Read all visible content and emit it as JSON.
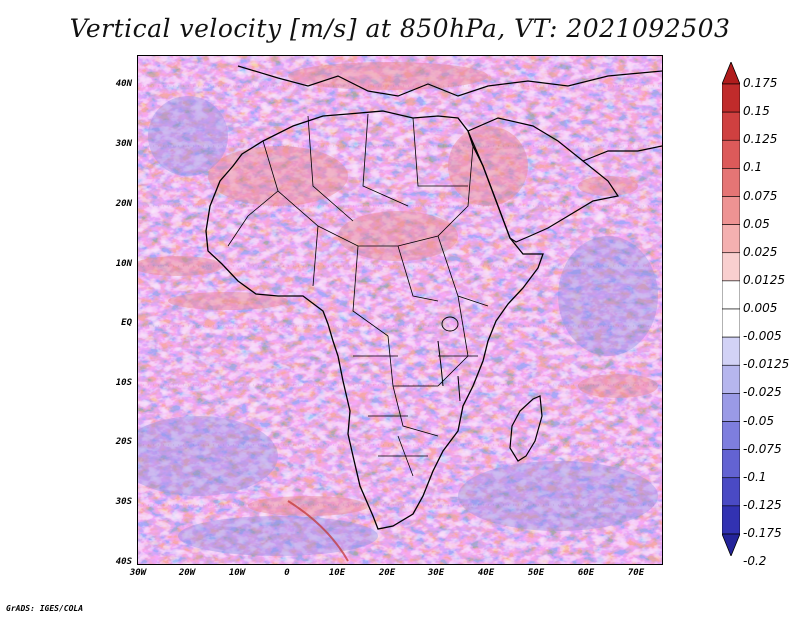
{
  "title": "Vertical velocity [m/s] at 850hPa, VT: 2021092503",
  "footer": "GrADS: IGES/COLA",
  "lat_labels": [
    "40N",
    "30N",
    "20N",
    "10N",
    "EQ",
    "10S",
    "20S",
    "30S",
    "40S"
  ],
  "lon_labels": [
    "30W",
    "20W",
    "10W",
    "0",
    "10E",
    "20E",
    "30E",
    "40E",
    "50E",
    "60E",
    "70E"
  ],
  "colorbar": {
    "labels": [
      "0.175",
      "0.15",
      "0.125",
      "0.1",
      "0.075",
      "0.05",
      "0.025",
      "0.0125",
      "0.005",
      "-0.005",
      "-0.0125",
      "-0.025",
      "-0.05",
      "-0.075",
      "-0.1",
      "-0.125",
      "-0.175",
      "-0.2"
    ],
    "colors": [
      "#b01c1c",
      "#c02b2b",
      "#cf4040",
      "#dc5a5a",
      "#e57575",
      "#ee9393",
      "#f4b0b0",
      "#f9cfcf",
      "#ffffff",
      "#ffffff",
      "#d2d2f6",
      "#b6b6ee",
      "#9a9ae6",
      "#7e7ede",
      "#6363d2",
      "#4a4ac4",
      "#3232b2",
      "#24249a"
    ]
  },
  "colors": {
    "positive": "#e8868a",
    "negative": "#9a9ae8",
    "background": "#f4f0f6",
    "coastline": "#000000"
  }
}
